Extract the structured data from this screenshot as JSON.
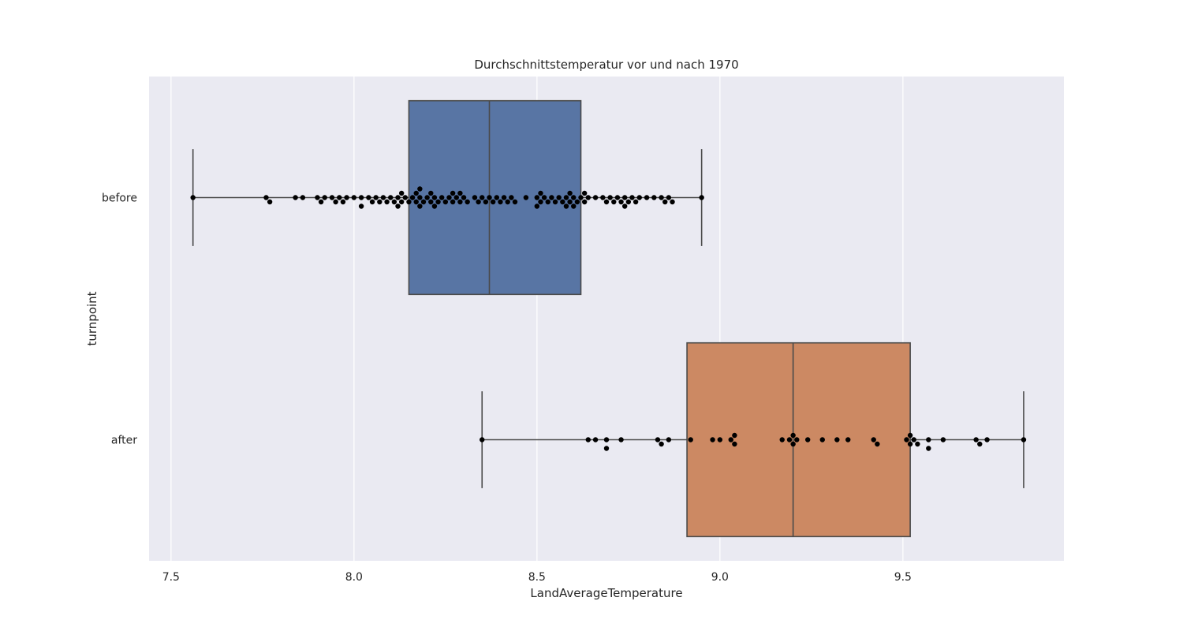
{
  "chart_data": {
    "type": "box",
    "title": "Durchschnittstemperatur vor und nach 1970",
    "xlabel": "LandAverageTemperature",
    "ylabel": "turnpoint",
    "xlim": [
      7.44,
      9.94
    ],
    "xticks": [
      7.5,
      8.0,
      8.5,
      9.0,
      9.5
    ],
    "grid": true,
    "orientation": "horizontal",
    "categories": [
      "before",
      "after"
    ],
    "colors": {
      "before": "#5875a4",
      "after": "#cc8963",
      "background": "#eaeaf2",
      "points": "#000000",
      "lines": "#4a4a4a"
    },
    "boxes": [
      {
        "category": "before",
        "whisker_low": 7.56,
        "q1": 8.15,
        "median": 8.37,
        "q3": 8.62,
        "whisker_high": 8.95
      },
      {
        "category": "after",
        "whisker_low": 8.35,
        "q1": 8.91,
        "median": 9.2,
        "q3": 9.52,
        "whisker_high": 9.83
      }
    ],
    "points": {
      "before": [
        7.56,
        7.76,
        7.77,
        7.84,
        7.86,
        7.9,
        7.91,
        7.92,
        7.94,
        7.95,
        7.96,
        7.97,
        7.98,
        8.0,
        8.02,
        8.02,
        8.04,
        8.05,
        8.06,
        8.07,
        8.08,
        8.09,
        8.1,
        8.11,
        8.12,
        8.12,
        8.13,
        8.13,
        8.14,
        8.15,
        8.16,
        8.17,
        8.17,
        8.18,
        8.18,
        8.18,
        8.19,
        8.2,
        8.21,
        8.21,
        8.22,
        8.22,
        8.23,
        8.24,
        8.25,
        8.26,
        8.27,
        8.27,
        8.28,
        8.29,
        8.29,
        8.3,
        8.31,
        8.33,
        8.34,
        8.35,
        8.36,
        8.37,
        8.38,
        8.39,
        8.4,
        8.41,
        8.42,
        8.43,
        8.44,
        8.47,
        8.5,
        8.5,
        8.51,
        8.51,
        8.52,
        8.53,
        8.54,
        8.55,
        8.56,
        8.57,
        8.58,
        8.58,
        8.59,
        8.59,
        8.6,
        8.6,
        8.61,
        8.62,
        8.63,
        8.63,
        8.64,
        8.66,
        8.68,
        8.69,
        8.7,
        8.71,
        8.72,
        8.73,
        8.74,
        8.74,
        8.75,
        8.76,
        8.77,
        8.78,
        8.8,
        8.82,
        8.84,
        8.85,
        8.86,
        8.87,
        8.95
      ],
      "after": [
        8.35,
        8.64,
        8.66,
        8.69,
        8.69,
        8.73,
        8.83,
        8.84,
        8.86,
        8.92,
        8.98,
        9.0,
        9.03,
        9.04,
        9.04,
        9.17,
        9.19,
        9.2,
        9.2,
        9.21,
        9.24,
        9.28,
        9.32,
        9.35,
        9.42,
        9.43,
        9.51,
        9.52,
        9.52,
        9.53,
        9.54,
        9.57,
        9.57,
        9.61,
        9.7,
        9.71,
        9.73,
        9.83
      ]
    }
  }
}
